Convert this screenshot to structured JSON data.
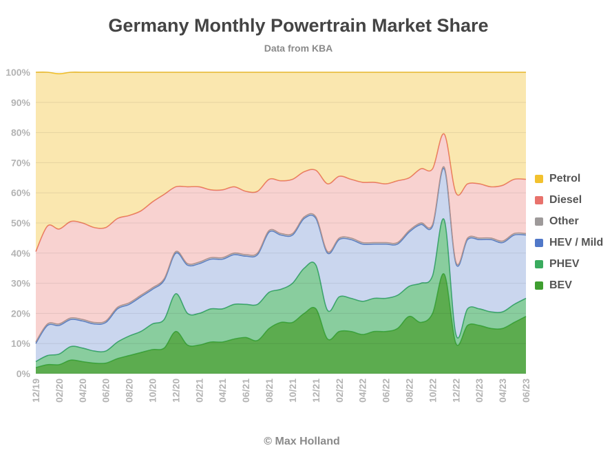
{
  "header": {
    "title": "Germany Monthly Powertrain Market Share",
    "subtitle": "Data from KBA"
  },
  "footer": {
    "credit": "© Max Holland"
  },
  "chart_data": {
    "type": "area",
    "stacked": true,
    "title": "Germany Monthly Powertrain Market Share",
    "subtitle": "Data from KBA",
    "xlabel": "",
    "ylabel": "",
    "ylim": [
      0,
      100
    ],
    "yticks": [
      "0%",
      "10%",
      "20%",
      "30%",
      "40%",
      "50%",
      "60%",
      "70%",
      "80%",
      "90%",
      "100%"
    ],
    "x_tick_labels": [
      "12/19",
      "02/20",
      "04/20",
      "06/20",
      "08/20",
      "10/20",
      "12/20",
      "02/21",
      "04/21",
      "06/21",
      "08/21",
      "10/21",
      "12/21",
      "02/22",
      "04/22",
      "06/22",
      "08/22",
      "10/22",
      "12/22",
      "02/23",
      "04/23",
      "06/23"
    ],
    "x": [
      "12/19",
      "01/20",
      "02/20",
      "03/20",
      "04/20",
      "05/20",
      "06/20",
      "07/20",
      "08/20",
      "09/20",
      "10/20",
      "11/20",
      "12/20",
      "01/21",
      "02/21",
      "03/21",
      "04/21",
      "05/21",
      "06/21",
      "07/21",
      "08/21",
      "09/21",
      "10/21",
      "11/21",
      "12/21",
      "01/22",
      "02/22",
      "03/22",
      "04/22",
      "05/22",
      "06/22",
      "07/22",
      "08/22",
      "09/22",
      "10/22",
      "11/22",
      "12/22",
      "01/23",
      "02/23",
      "03/23",
      "04/23",
      "05/23",
      "06/23"
    ],
    "grid": true,
    "legend_position": "right",
    "series": [
      {
        "name": "BEV",
        "color": "#3f9e30",
        "values": [
          2.0,
          3.0,
          3.0,
          4.5,
          4.0,
          3.5,
          3.5,
          5.0,
          6.0,
          7.0,
          8.0,
          8.5,
          14.0,
          9.5,
          9.5,
          10.5,
          10.5,
          11.5,
          12.0,
          11.0,
          15.0,
          17.0,
          17.0,
          20.0,
          21.5,
          11.5,
          14.0,
          14.0,
          13.0,
          14.0,
          14.0,
          15.0,
          19.0,
          17.0,
          20.0,
          33.0,
          10.0,
          16.0,
          16.0,
          15.0,
          15.0,
          17.0,
          19.0
        ]
      },
      {
        "name": "PHEV",
        "color": "#3aab5e",
        "values": [
          2.0,
          3.0,
          3.5,
          4.5,
          4.5,
          4.0,
          4.0,
          5.5,
          6.5,
          7.0,
          8.5,
          9.5,
          12.5,
          10.5,
          10.5,
          11.0,
          11.0,
          11.5,
          11.0,
          12.0,
          12.0,
          11.0,
          13.0,
          15.0,
          14.5,
          9.5,
          11.5,
          11.0,
          11.0,
          11.0,
          11.0,
          11.0,
          10.0,
          13.0,
          12.5,
          18.0,
          3.0,
          5.5,
          5.5,
          5.5,
          5.5,
          6.0,
          6.0
        ]
      },
      {
        "name": "HEV / Mild",
        "color": "#5078c8",
        "values": [
          6.0,
          10.0,
          9.5,
          9.0,
          9.0,
          9.0,
          9.5,
          11.0,
          10.5,
          11.5,
          11.5,
          13.0,
          13.5,
          16.0,
          16.5,
          16.5,
          16.5,
          16.5,
          16.0,
          16.5,
          20.0,
          18.0,
          16.0,
          16.5,
          15.5,
          19.0,
          19.0,
          19.5,
          19.0,
          18.0,
          18.0,
          17.0,
          18.0,
          19.5,
          16.5,
          17.0,
          23.5,
          23.0,
          23.0,
          24.0,
          23.0,
          23.0,
          21.0
        ]
      },
      {
        "name": "Other",
        "color": "#9e9a9a",
        "values": [
          0.5,
          0.5,
          0.5,
          0.5,
          0.5,
          0.5,
          0.5,
          0.5,
          0.5,
          0.5,
          0.5,
          0.5,
          0.5,
          0.5,
          0.5,
          0.5,
          0.5,
          0.5,
          0.5,
          0.5,
          0.5,
          0.5,
          0.5,
          0.5,
          0.5,
          0.5,
          0.5,
          0.5,
          0.5,
          0.5,
          0.5,
          0.5,
          0.5,
          0.5,
          0.5,
          0.5,
          0.5,
          0.5,
          0.5,
          0.5,
          0.5,
          0.5,
          0.5
        ]
      },
      {
        "name": "Diesel",
        "color": "#e8726c",
        "values": [
          30.0,
          32.5,
          31.5,
          32.0,
          32.0,
          31.5,
          31.0,
          29.5,
          29.0,
          28.0,
          28.5,
          28.0,
          21.5,
          25.5,
          25.0,
          22.5,
          22.5,
          22.0,
          21.0,
          20.5,
          17.0,
          17.5,
          18.0,
          15.0,
          15.5,
          22.5,
          20.5,
          19.5,
          20.0,
          20.0,
          19.5,
          20.5,
          17.5,
          18.0,
          18.5,
          11.0,
          23.0,
          18.0,
          18.0,
          17.0,
          18.5,
          18.0,
          18.0
        ]
      },
      {
        "name": "Petrol",
        "color": "#f2c12e",
        "values": [
          59.5,
          51.0,
          51.5,
          49.5,
          50.0,
          51.5,
          51.5,
          48.5,
          47.5,
          46.0,
          43.0,
          40.5,
          38.0,
          38.0,
          38.0,
          39.0,
          39.0,
          38.0,
          39.5,
          39.5,
          35.5,
          36.0,
          35.5,
          33.0,
          32.5,
          37.0,
          34.5,
          35.5,
          36.5,
          36.5,
          37.0,
          36.0,
          35.0,
          32.0,
          32.0,
          20.5,
          40.0,
          37.0,
          37.0,
          38.0,
          37.5,
          35.5,
          35.5
        ]
      }
    ]
  }
}
